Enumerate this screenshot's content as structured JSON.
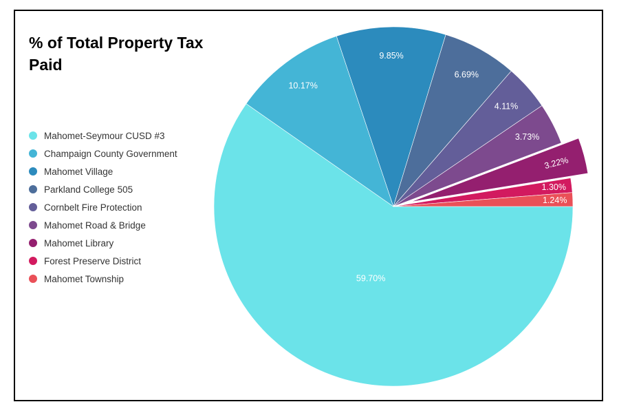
{
  "chart_data": {
    "type": "pie",
    "title": "% of Total Property Tax Paid",
    "legend_position": "left",
    "slices": [
      {
        "label": "Mahomet-Seymour CUSD #3",
        "value": 59.7,
        "display": "59.70%",
        "color": "#6be3e9",
        "exploded": false
      },
      {
        "label": "Champaign County Government",
        "value": 10.17,
        "display": "10.17%",
        "color": "#44b5d6",
        "exploded": false
      },
      {
        "label": "Mahomet Village",
        "value": 9.85,
        "display": "9.85%",
        "color": "#2c8bbd",
        "exploded": false
      },
      {
        "label": "Parkland College 505",
        "value": 6.69,
        "display": "6.69%",
        "color": "#4d6e9b",
        "exploded": false
      },
      {
        "label": "Cornbelt Fire Protection",
        "value": 4.11,
        "display": "4.11%",
        "color": "#635e99",
        "exploded": false
      },
      {
        "label": "Mahomet Road & Bridge",
        "value": 3.73,
        "display": "3.73%",
        "color": "#7d4a8e",
        "exploded": false
      },
      {
        "label": "Mahomet Library",
        "value": 3.22,
        "display": "3.22%",
        "color": "#941f6f",
        "exploded": true
      },
      {
        "label": "Forest Preserve District",
        "value": 1.3,
        "display": "1.30%",
        "color": "#d21a5f",
        "exploded": false
      },
      {
        "label": "Mahomet Township",
        "value": 1.24,
        "display": "1.24%",
        "color": "#ea5058",
        "exploded": false
      }
    ]
  }
}
